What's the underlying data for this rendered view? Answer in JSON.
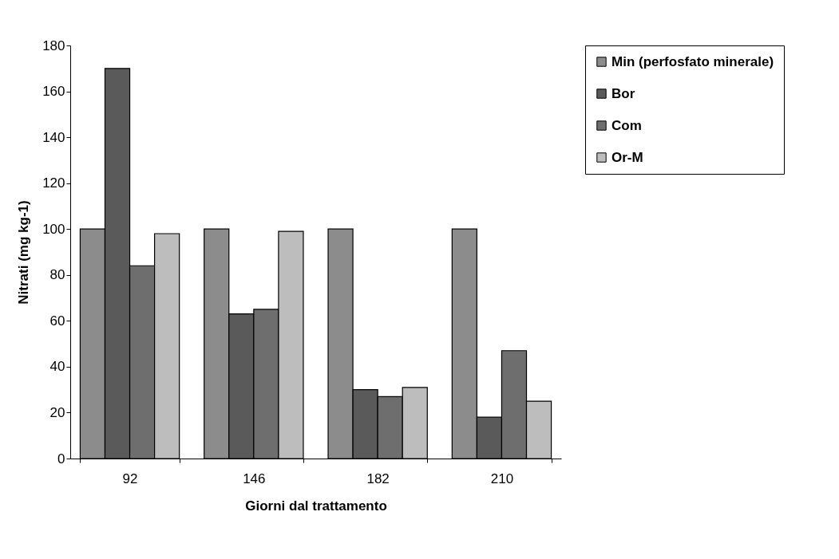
{
  "chart_data": {
    "type": "bar",
    "xlabel": "Giorni dal trattamento",
    "ylabel": "Nitrati (mg kg-1)",
    "categories": [
      "92",
      "146",
      "182",
      "210"
    ],
    "ylim": [
      0,
      180
    ],
    "yticks": [
      0,
      20,
      40,
      60,
      80,
      100,
      120,
      140,
      160,
      180
    ],
    "grid": false,
    "legend": "right",
    "series": [
      {
        "name": "Min (perfosfato minerale)",
        "color": "#8c8c8c",
        "values": [
          100,
          100,
          100,
          100
        ]
      },
      {
        "name": "Bor",
        "color": "#5a5a5a",
        "values": [
          170,
          63,
          30,
          18
        ]
      },
      {
        "name": "Com",
        "color": "#6e6e6e",
        "values": [
          84,
          65,
          27,
          47
        ]
      },
      {
        "name": "Or-M",
        "color": "#bdbdbd",
        "values": [
          98,
          99,
          31,
          25
        ]
      }
    ]
  }
}
